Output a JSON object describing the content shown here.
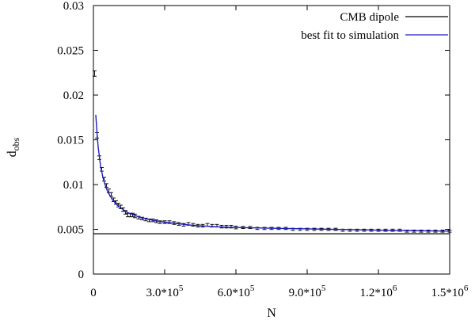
{
  "chart_data": {
    "type": "scatter",
    "title": "",
    "xlabel": "N",
    "ylabel_main": "d",
    "ylabel_sub": "obs",
    "xlim": [
      0,
      1500000
    ],
    "ylim": [
      0,
      0.03
    ],
    "grid": false,
    "legend_position": "top-right",
    "x_ticks": [
      {
        "value": 0,
        "base": "0",
        "exp": ""
      },
      {
        "value": 300000,
        "base": "3.0*10",
        "exp": "5"
      },
      {
        "value": 600000,
        "base": "6.0*10",
        "exp": "5"
      },
      {
        "value": 900000,
        "base": "9.0*10",
        "exp": "5"
      },
      {
        "value": 1200000,
        "base": "1.2*10",
        "exp": "6"
      },
      {
        "value": 1500000,
        "base": "1.5*10",
        "exp": "6"
      }
    ],
    "y_ticks": [
      {
        "value": 0,
        "label": "0"
      },
      {
        "value": 0.005,
        "label": "0.005"
      },
      {
        "value": 0.01,
        "label": "0.01"
      },
      {
        "value": 0.015,
        "label": "0.015"
      },
      {
        "value": 0.02,
        "label": "0.02"
      },
      {
        "value": 0.025,
        "label": "0.025"
      },
      {
        "value": 0.03,
        "label": "0.03"
      }
    ],
    "cmb_dipole": {
      "name": "CMB dipole",
      "value": 0.0045,
      "color": "#000000"
    },
    "fit": {
      "name": "best fit to simulation",
      "color": "#1f1fbf",
      "x": [
        10000,
        15000,
        20000,
        30000,
        40000,
        50000,
        60000,
        80000,
        100000,
        125000,
        150000,
        200000,
        250000,
        300000,
        400000,
        500000,
        600000,
        800000,
        1000000,
        1200000,
        1500000
      ],
      "y": [
        0.0178,
        0.0158,
        0.0142,
        0.0121,
        0.0108,
        0.0099,
        0.0092,
        0.0083,
        0.0077,
        0.0072,
        0.0068,
        0.0063,
        0.006,
        0.0058,
        0.0055,
        0.0053,
        0.0052,
        0.0051,
        0.005,
        0.0049,
        0.0048
      ]
    },
    "simulation_points": {
      "color": "#000000",
      "x": [
        5000,
        15000,
        25000,
        35000,
        45000,
        55000,
        65000,
        75000,
        85000,
        95000,
        105000,
        115000,
        125000,
        135000,
        145000,
        155000,
        165000,
        175000,
        190000,
        205000,
        220000,
        235000,
        250000,
        265000,
        280000,
        300000,
        320000,
        340000,
        360000,
        380000,
        400000,
        420000,
        440000,
        460000,
        480000,
        500000,
        520000,
        540000,
        560000,
        580000,
        600000,
        630000,
        660000,
        690000,
        720000,
        750000,
        780000,
        810000,
        840000,
        870000,
        900000,
        930000,
        960000,
        990000,
        1020000,
        1050000,
        1080000,
        1110000,
        1140000,
        1170000,
        1200000,
        1230000,
        1260000,
        1290000,
        1320000,
        1350000,
        1380000,
        1410000,
        1440000,
        1470000,
        1500000
      ],
      "y": [
        0.0224,
        0.0155,
        0.013,
        0.0117,
        0.0106,
        0.0099,
        0.0093,
        0.0089,
        0.0083,
        0.008,
        0.0077,
        0.0075,
        0.0072,
        0.0069,
        0.0066,
        0.0066,
        0.0066,
        0.0065,
        0.0063,
        0.0062,
        0.0061,
        0.006,
        0.006,
        0.0059,
        0.0058,
        0.0058,
        0.0058,
        0.0057,
        0.0056,
        0.0055,
        0.0056,
        0.0055,
        0.0054,
        0.0054,
        0.0055,
        0.0054,
        0.0054,
        0.0053,
        0.0053,
        0.0053,
        0.0052,
        0.0052,
        0.0052,
        0.0051,
        0.0051,
        0.0051,
        0.0051,
        0.0051,
        0.005,
        0.005,
        0.005,
        0.005,
        0.005,
        0.005,
        0.005,
        0.0049,
        0.0049,
        0.0049,
        0.0049,
        0.0049,
        0.0049,
        0.0049,
        0.0049,
        0.0049,
        0.0048,
        0.0048,
        0.0048,
        0.0048,
        0.0048,
        0.0048,
        0.0048
      ],
      "err": [
        0.0003,
        0.0003,
        0.0002,
        0.0002,
        0.0002,
        0.0002,
        0.0002,
        0.0002,
        0.0002,
        0.0002,
        0.0002,
        0.0002,
        0.0002,
        0.0002,
        0.0002,
        0.0002,
        0.0002,
        0.0002,
        0.00015,
        0.00015,
        0.00015,
        0.00015,
        0.00015,
        0.00015,
        0.00015,
        0.00015,
        0.00015,
        0.00015,
        0.00015,
        0.00015,
        0.00015,
        0.00015,
        0.00015,
        0.00015,
        0.00015,
        0.00015,
        0.00015,
        0.00015,
        0.00015,
        0.00015,
        0.00015,
        0.00012,
        0.00012,
        0.00012,
        0.00012,
        0.00012,
        0.00012,
        0.00012,
        0.00012,
        0.00012,
        0.00012,
        0.00012,
        0.00012,
        0.00012,
        0.00012,
        0.00012,
        0.00012,
        0.00012,
        0.00012,
        0.00012,
        0.00012,
        0.00012,
        0.00012,
        0.00012,
        0.00012,
        0.00012,
        0.00012,
        0.00012,
        0.00012,
        0.00012,
        0.00012
      ]
    }
  }
}
